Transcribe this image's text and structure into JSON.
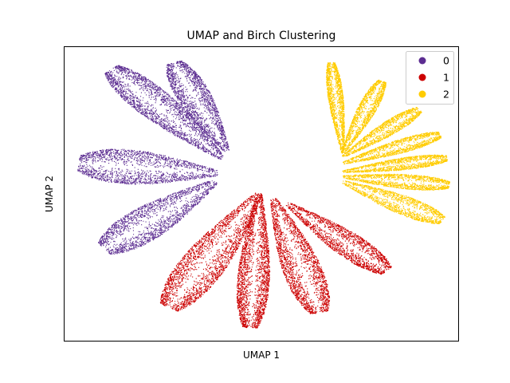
{
  "chart_data": {
    "type": "scatter",
    "title": "UMAP and Birch Clustering",
    "xlabel": "UMAP 1",
    "ylabel": "UMAP 2",
    "ticks_shown": false,
    "grid": false,
    "legend_placement": "top-right",
    "series": [
      {
        "name": "0",
        "color": "#5c2d91",
        "lobes": [
          {
            "base": [
              -0.2,
              0.9
            ],
            "tip": [
              -5.0,
              6.2
            ],
            "width": 2.3
          },
          {
            "base": [
              0.0,
              1.3
            ],
            "tip": [
              -2.3,
              6.6
            ],
            "width": 2.0
          },
          {
            "base": [
              -0.4,
              0.0
            ],
            "tip": [
              -6.4,
              0.6
            ],
            "width": 2.8
          },
          {
            "base": [
              -0.5,
              -0.5
            ],
            "tip": [
              -5.3,
              -4.5
            ],
            "width": 2.6
          }
        ]
      },
      {
        "name": "1",
        "color": "#cc0000",
        "lobes": [
          {
            "base": [
              1.4,
              -1.2
            ],
            "tip": [
              -2.5,
              -8.0
            ],
            "width": 2.7
          },
          {
            "base": [
              1.4,
              -1.2
            ],
            "tip": [
              1.0,
              -9.2
            ],
            "width": 1.9
          },
          {
            "base": [
              2.0,
              -1.5
            ],
            "tip": [
              4.0,
              -8.3
            ],
            "width": 2.3
          },
          {
            "base": [
              2.6,
              -1.8
            ],
            "tip": [
              6.9,
              -5.8
            ],
            "width": 1.9
          }
        ]
      },
      {
        "name": "2",
        "color": "#ffcc00",
        "lobes": [
          {
            "base": [
              5.0,
              1.2
            ],
            "tip": [
              4.5,
              6.6
            ],
            "width": 0.9
          },
          {
            "base": [
              5.0,
              1.2
            ],
            "tip": [
              6.7,
              5.5
            ],
            "width": 1.1
          },
          {
            "base": [
              5.0,
              1.0
            ],
            "tip": [
              8.3,
              3.8
            ],
            "width": 1.1
          },
          {
            "base": [
              5.0,
              0.6
            ],
            "tip": [
              9.2,
              2.3
            ],
            "width": 1.1
          },
          {
            "base": [
              5.0,
              0.1
            ],
            "tip": [
              9.5,
              0.9
            ],
            "width": 1.0
          },
          {
            "base": [
              5.0,
              -0.2
            ],
            "tip": [
              9.6,
              -0.7
            ],
            "width": 1.2
          },
          {
            "base": [
              5.0,
              -0.5
            ],
            "tip": [
              9.3,
              -2.8
            ],
            "width": 1.5
          }
        ]
      }
    ],
    "xlim": [
      -7.0,
      10.0
    ],
    "ylim": [
      -10.0,
      7.5
    ]
  }
}
